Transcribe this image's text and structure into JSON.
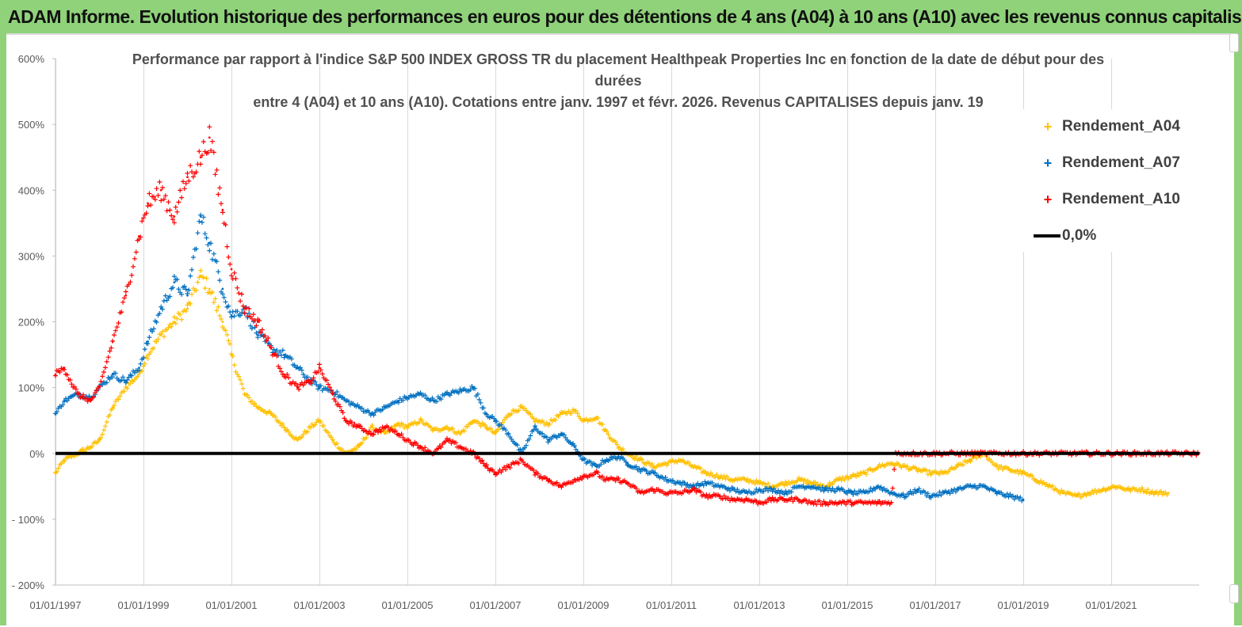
{
  "banner": {
    "title": "ADAM Informe. Evolution historique des performances en euros pour des détentions de 4 ans (A04) à 10 ans (A10) avec les revenus connus capitalisés"
  },
  "colors": {
    "banner": "#8fd27a",
    "A04": "#ffc000",
    "A07": "#0070c0",
    "A10": "#ff0000",
    "zero": "#000000"
  },
  "chart_data": {
    "type": "scatter",
    "title_lines": [
      "Performance par rapport à l'indice S&P 500 INDEX GROSS TR  du placement Healthpeak Properties Inc en fonction de la date de début pour des",
      "durées",
      "entre 4 (A04) et 10 ans (A10).  Cotations entre janv. 1997 et févr. 2026. Revenus CAPITALISES depuis janv. 19"
    ],
    "xlabel": "",
    "ylabel": "",
    "xlim": [
      1997.0,
      2023.0
    ],
    "ylim": [
      -200,
      600
    ],
    "y_ticks": [
      -200,
      -100,
      0,
      100,
      200,
      300,
      400,
      500,
      600
    ],
    "y_tick_labels": [
      "- 200%",
      "- 100%",
      "0%",
      "100%",
      "200%",
      "300%",
      "400%",
      "500%",
      "600%"
    ],
    "x_ticks": [
      1997,
      1999,
      2001,
      2003,
      2005,
      2007,
      2009,
      2011,
      2013,
      2015,
      2017,
      2019,
      2021
    ],
    "x_tick_labels": [
      "01/01/1997",
      "01/01/1999",
      "01/01/2001",
      "01/01/2003",
      "01/01/2005",
      "01/01/2007",
      "01/01/2009",
      "01/01/2011",
      "01/01/2013",
      "01/01/2015",
      "01/01/2017",
      "01/01/2019",
      "01/01/2021"
    ],
    "grid": "vertical",
    "legend_position": "top-right",
    "zero_line": {
      "name": "0,0%",
      "value": 0
    },
    "series": [
      {
        "name": "Rendement_A04",
        "color": "#ffc000",
        "x": [
          1997.0,
          1997.2,
          1997.5,
          1997.8,
          1998.0,
          1998.3,
          1998.6,
          1998.9,
          1999.1,
          1999.4,
          1999.7,
          2000.0,
          2000.3,
          2000.5,
          2000.8,
          2001.0,
          2001.3,
          2001.6,
          2001.9,
          2002.2,
          2002.5,
          2002.8,
          2003.0,
          2003.3,
          2003.6,
          2003.9,
          2004.2,
          2004.5,
          2004.8,
          2005.0,
          2005.3,
          2005.6,
          2005.9,
          2006.2,
          2006.5,
          2006.8,
          2007.0,
          2007.3,
          2007.6,
          2007.9,
          2008.2,
          2008.5,
          2008.8,
          2009.0,
          2009.3,
          2009.5,
          2009.8,
          2010.0,
          2010.3,
          2010.6,
          2010.9,
          2011.2,
          2011.5,
          2011.8,
          2012.1,
          2012.4,
          2012.7,
          2013.0,
          2013.3,
          2013.6,
          2013.9,
          2014.2,
          2014.5,
          2014.8,
          2015.1,
          2015.4,
          2015.7,
          2016.0,
          2016.3,
          2016.6,
          2016.9,
          2017.2,
          2017.5,
          2017.8,
          2018.1,
          2018.4,
          2018.7,
          2019.0,
          2019.3,
          2019.6,
          2019.9,
          2020.2,
          2020.5,
          2020.8,
          2021.1,
          2021.4,
          2021.7,
          2022.0,
          2022.3
        ],
        "values": [
          -30,
          -10,
          0,
          10,
          20,
          70,
          100,
          120,
          150,
          180,
          200,
          220,
          270,
          250,
          200,
          150,
          90,
          70,
          60,
          40,
          20,
          40,
          50,
          20,
          0,
          10,
          40,
          30,
          45,
          40,
          50,
          35,
          40,
          30,
          50,
          40,
          30,
          60,
          70,
          50,
          45,
          60,
          65,
          50,
          55,
          35,
          10,
          0,
          -10,
          -20,
          -15,
          -10,
          -20,
          -30,
          -35,
          -40,
          -40,
          -45,
          -50,
          -45,
          -40,
          -45,
          -50,
          -40,
          -35,
          -30,
          -20,
          -15,
          -20,
          -25,
          -30,
          -30,
          -20,
          -10,
          0,
          -20,
          -25,
          -30,
          -40,
          -50,
          -60,
          -65,
          -60,
          -55,
          -50,
          -55,
          -55,
          -60,
          -60
        ]
      },
      {
        "name": "Rendement_A07",
        "color": "#0070c0",
        "x": [
          1997.0,
          1997.2,
          1997.5,
          1997.8,
          1998.0,
          1998.3,
          1998.6,
          1998.9,
          1999.1,
          1999.4,
          1999.7,
          2000.0,
          2000.3,
          2000.5,
          2000.8,
          2001.0,
          2001.3,
          2001.6,
          2001.9,
          2002.2,
          2002.5,
          2002.8,
          2003.0,
          2003.3,
          2003.6,
          2003.9,
          2004.2,
          2004.5,
          2004.8,
          2005.0,
          2005.3,
          2005.6,
          2005.9,
          2006.2,
          2006.5,
          2006.8,
          2007.0,
          2007.3,
          2007.6,
          2007.9,
          2008.2,
          2008.5,
          2008.8,
          2009.0,
          2009.3,
          2009.5,
          2009.8,
          2010.0,
          2010.3,
          2010.6,
          2010.9,
          2011.2,
          2011.5,
          2011.8,
          2012.1,
          2012.4,
          2012.7,
          2013.0,
          2013.3,
          2013.6,
          2013.9,
          2014.2,
          2014.5,
          2014.8,
          2015.1,
          2015.4,
          2015.7,
          2016.0,
          2016.3,
          2016.6,
          2016.9,
          2017.2,
          2017.5,
          2017.8,
          2018.1,
          2018.4,
          2018.7,
          2019.0
        ],
        "values": [
          60,
          80,
          90,
          85,
          100,
          120,
          110,
          130,
          170,
          220,
          260,
          240,
          360,
          320,
          250,
          210,
          220,
          180,
          160,
          150,
          130,
          110,
          100,
          95,
          80,
          70,
          60,
          70,
          80,
          85,
          90,
          80,
          90,
          95,
          100,
          60,
          50,
          30,
          0,
          40,
          20,
          30,
          10,
          -10,
          -20,
          -10,
          -5,
          -15,
          -25,
          -30,
          -40,
          -45,
          -50,
          -45,
          -50,
          -55,
          -60,
          -55,
          -55,
          -60,
          -50,
          -50,
          -55,
          -55,
          -60,
          -60,
          -50,
          -60,
          -65,
          -55,
          -65,
          -60,
          -55,
          -50,
          -50,
          -60,
          -65,
          -70
        ]
      },
      {
        "name": "Rendement_A10",
        "color": "#ff0000",
        "x": [
          1997.0,
          1997.2,
          1997.5,
          1997.8,
          1998.0,
          1998.3,
          1998.6,
          1998.9,
          1999.1,
          1999.4,
          1999.7,
          2000.0,
          2000.3,
          2000.5,
          2000.8,
          2001.0,
          2001.3,
          2001.6,
          2001.9,
          2002.2,
          2002.5,
          2002.8,
          2003.0,
          2003.3,
          2003.6,
          2003.9,
          2004.2,
          2004.5,
          2004.8,
          2005.0,
          2005.3,
          2005.6,
          2005.9,
          2006.2,
          2006.5,
          2006.8,
          2007.0,
          2007.3,
          2007.6,
          2007.9,
          2008.2,
          2008.5,
          2008.8,
          2009.0,
          2009.3,
          2009.5,
          2009.8,
          2010.0,
          2010.3,
          2010.6,
          2010.9,
          2011.2,
          2011.5,
          2011.8,
          2012.1,
          2012.4,
          2012.7,
          2013.0,
          2013.3,
          2013.6,
          2013.9,
          2014.2,
          2014.5,
          2014.8,
          2015.1,
          2015.4,
          2015.7,
          2016.0,
          2016.1,
          2016.5,
          2017.0,
          2017.5,
          2018.0,
          2018.5,
          2019.0,
          2019.5,
          2020.0,
          2020.5,
          2021.0,
          2021.5,
          2022.0,
          2022.5,
          2023.0
        ],
        "values": [
          120,
          130,
          90,
          80,
          100,
          170,
          240,
          330,
          380,
          400,
          360,
          420,
          450,
          480,
          370,
          280,
          220,
          200,
          160,
          120,
          100,
          110,
          130,
          90,
          50,
          40,
          30,
          40,
          30,
          20,
          10,
          0,
          20,
          10,
          0,
          -20,
          -30,
          -20,
          -10,
          -30,
          -40,
          -50,
          -40,
          -35,
          -30,
          -40,
          -40,
          -45,
          -60,
          -55,
          -60,
          -60,
          -55,
          -65,
          -65,
          -70,
          -70,
          -75,
          -70,
          -70,
          -70,
          -75,
          -75,
          -75,
          -75,
          -75,
          -75,
          -75,
          0,
          0,
          0,
          0,
          0,
          0,
          0,
          0,
          0,
          0,
          0,
          0,
          0,
          0,
          0
        ]
      }
    ]
  }
}
